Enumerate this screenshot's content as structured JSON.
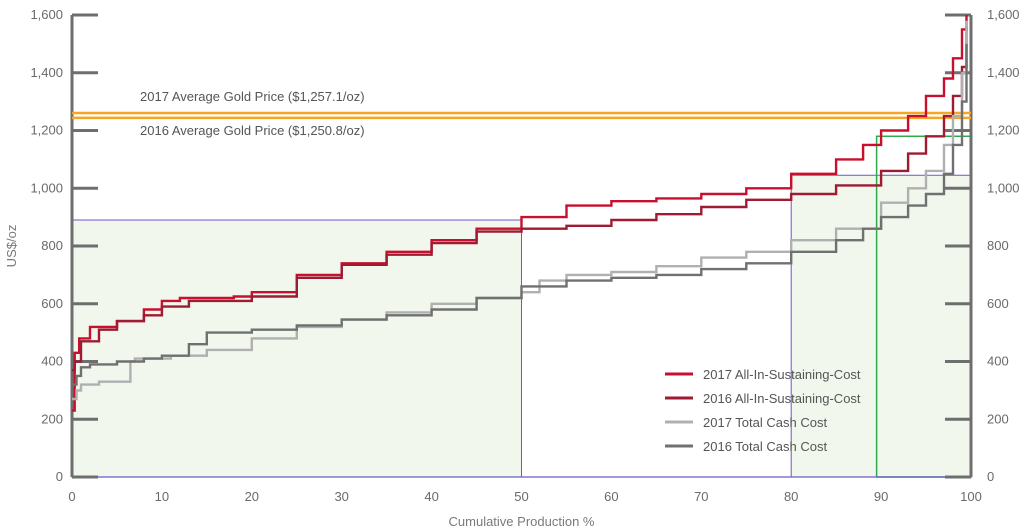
{
  "chart_data": {
    "type": "line",
    "title": "",
    "xlabel": "Cumulative Production %",
    "ylabel": "US$/oz",
    "xlim": [
      0,
      100
    ],
    "ylim": [
      0,
      1600
    ],
    "x_ticks": [
      0,
      10,
      20,
      30,
      40,
      50,
      60,
      70,
      80,
      90,
      100
    ],
    "y_ticks": [
      0,
      200,
      400,
      600,
      800,
      1000,
      1200,
      1400,
      1600
    ],
    "x_tick_labels": [
      "0",
      "10",
      "20",
      "30",
      "40",
      "50",
      "60",
      "70",
      "80",
      "90",
      "100"
    ],
    "y_tick_labels": [
      "0",
      "200",
      "400",
      "600",
      "800",
      "1,000",
      "1,200",
      "1,400",
      "1,600"
    ],
    "right_y_tick_labels": [
      "0",
      "200",
      "400",
      "600",
      "800",
      "1,000",
      "1,200",
      "1,400",
      "1,600"
    ],
    "reference_lines": [
      {
        "label": "2017 Average Gold Price ($1,257.1/oz)",
        "value": 1257.1,
        "color": "#f5a623"
      },
      {
        "label": "2016 Average Gold Price ($1,250.8/oz)",
        "value": 1250.8,
        "color": "#f5a623"
      }
    ],
    "highlight_boxes": [
      {
        "x_range": [
          0,
          50
        ],
        "y_top": 890,
        "color": "#6a5acd"
      },
      {
        "x_range": [
          80,
          100
        ],
        "y_top": 1045,
        "color": "#6a5acd"
      },
      {
        "x_range": [
          89.5,
          100
        ],
        "y_top": 1180,
        "color": "#2eaa4a"
      }
    ],
    "series": [
      {
        "name": "2017 All-In-Sustaining-Cost",
        "color": "#c8102e",
        "x": [
          0,
          0.3,
          0.8,
          2,
          5,
          8,
          10,
          12,
          15,
          18,
          20,
          25,
          30,
          35,
          40,
          45,
          50,
          55,
          60,
          65,
          70,
          75,
          80,
          85,
          88,
          90,
          93,
          95,
          97,
          98,
          99,
          99.5
        ],
        "y": [
          230,
          430,
          480,
          520,
          540,
          580,
          610,
          620,
          620,
          625,
          640,
          700,
          740,
          780,
          820,
          860,
          900,
          940,
          955,
          965,
          980,
          1000,
          1050,
          1100,
          1150,
          1200,
          1250,
          1320,
          1380,
          1450,
          1550,
          1600
        ]
      },
      {
        "name": "2016 All-In-Sustaining-Cost",
        "color": "#9e1b32",
        "x": [
          0,
          0.3,
          1,
          3,
          5,
          8,
          10,
          13,
          17,
          20,
          25,
          30,
          35,
          40,
          45,
          50,
          55,
          60,
          65,
          70,
          75,
          80,
          85,
          90,
          93,
          95,
          97,
          98,
          99,
          99.5
        ],
        "y": [
          370,
          400,
          470,
          510,
          540,
          560,
          590,
          610,
          610,
          625,
          690,
          735,
          770,
          810,
          850,
          860,
          870,
          890,
          910,
          935,
          960,
          980,
          1010,
          1060,
          1120,
          1180,
          1250,
          1320,
          1420,
          1560
        ]
      },
      {
        "name": "2017 Total Cash Cost",
        "color": "#b0b0b0",
        "x": [
          0,
          0.5,
          1,
          3,
          6.5,
          7,
          10,
          11,
          15,
          20,
          25,
          30,
          35,
          40,
          45,
          50,
          52,
          55,
          60,
          65,
          70,
          75,
          80,
          85,
          90,
          93,
          95,
          97,
          98,
          99,
          99.5
        ],
        "y": [
          270,
          300,
          320,
          330,
          400,
          410,
          410,
          420,
          440,
          480,
          520,
          545,
          570,
          600,
          620,
          640,
          680,
          700,
          710,
          730,
          760,
          780,
          820,
          860,
          950,
          1000,
          1060,
          1150,
          1250,
          1400,
          1580
        ]
      },
      {
        "name": "2016 Total Cash Cost",
        "color": "#707070",
        "x": [
          0,
          0.5,
          1,
          2,
          5,
          8,
          10,
          13,
          15,
          20,
          25,
          30,
          35,
          40,
          45,
          50,
          55,
          60,
          65,
          70,
          75,
          80,
          85,
          88,
          90,
          93,
          95,
          97,
          98,
          99,
          99.5
        ],
        "y": [
          320,
          350,
          380,
          390,
          400,
          410,
          420,
          460,
          500,
          510,
          525,
          545,
          560,
          580,
          620,
          660,
          680,
          690,
          700,
          720,
          740,
          780,
          820,
          860,
          900,
          940,
          980,
          1050,
          1150,
          1300,
          1500
        ]
      }
    ],
    "legend": {
      "position": "bottom-right"
    }
  }
}
